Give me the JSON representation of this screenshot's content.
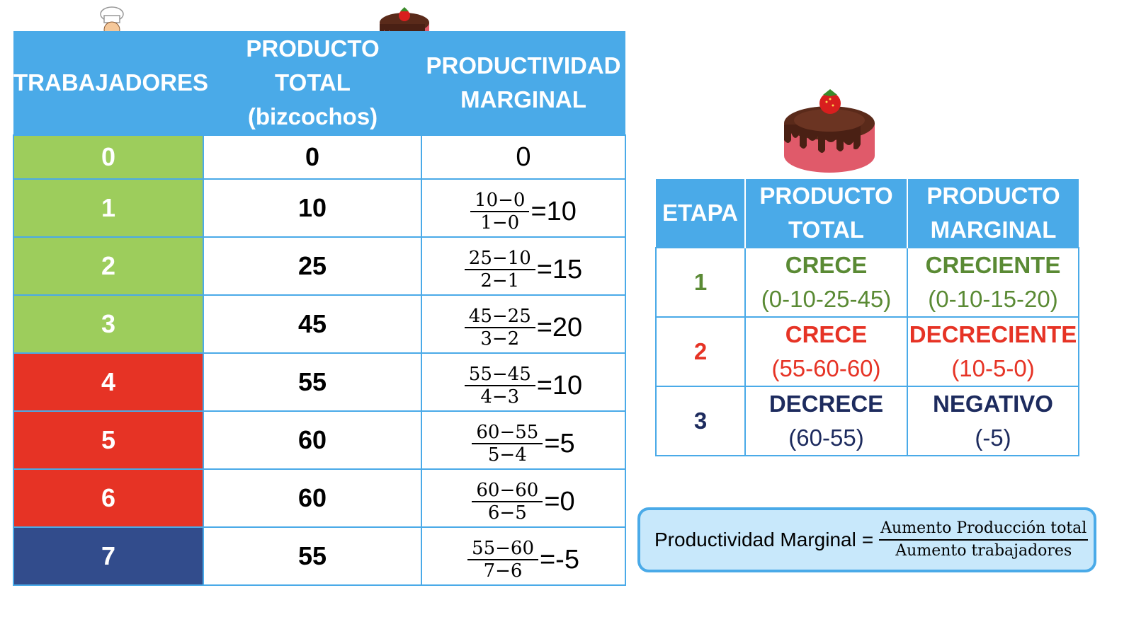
{
  "left_table": {
    "headers": {
      "trabajadores": "TRABAJADORES",
      "producto_total_line1": "PRODUCTO",
      "producto_total_line2": "TOTAL",
      "producto_total_line3": "(bizcochos)",
      "productividad_line1": "PRODUCTIVIDAD",
      "productividad_line2": "MARGINAL"
    },
    "rows": [
      {
        "workers": "0",
        "total": "0",
        "pm_plain": "0",
        "color": "#9dcd5c"
      },
      {
        "workers": "1",
        "total": "10",
        "pm_num": "10−0",
        "pm_den": "1−0",
        "pm_res": "=10",
        "color": "#9dcd5c"
      },
      {
        "workers": "2",
        "total": "25",
        "pm_num": "25−10",
        "pm_den": "2−1",
        "pm_res": "=15",
        "color": "#9dcd5c"
      },
      {
        "workers": "3",
        "total": "45",
        "pm_num": "45−25",
        "pm_den": "3−2",
        "pm_res": "=20",
        "color": "#9dcd5c"
      },
      {
        "workers": "4",
        "total": "55",
        "pm_num": "55−45",
        "pm_den": "4−3",
        "pm_res": "=10",
        "color": "#e63325"
      },
      {
        "workers": "5",
        "total": "60",
        "pm_num": "60−55",
        "pm_den": "5−4",
        "pm_res": "=5",
        "color": "#e63325"
      },
      {
        "workers": "6",
        "total": "60",
        "pm_num": "60−60",
        "pm_den": "6−5",
        "pm_res": "=0",
        "color": "#e63325"
      },
      {
        "workers": "7",
        "total": "55",
        "pm_num": "55−60",
        "pm_den": "7−6",
        "pm_res": "=-5",
        "color": "#324c8c"
      }
    ]
  },
  "right_table": {
    "headers": {
      "etapa": "ETAPA",
      "pt_line1": "PRODUCTO",
      "pt_line2": "TOTAL",
      "pm_line1": "PRODUCTO",
      "pm_line2": "MARGINAL"
    },
    "rows": [
      {
        "etapa": "1",
        "pt_kw": "CRECE",
        "pt_range": "(0-10-25-45)",
        "pm_kw": "CRECIENTE",
        "pm_range": "(0-10-15-20)",
        "color": "#5a8a34"
      },
      {
        "etapa": "2",
        "pt_kw": "CRECE",
        "pt_range": "(55-60-60)",
        "pm_kw": "DECRECIENTE",
        "pm_range": "(10-5-0)",
        "color": "#e63325"
      },
      {
        "etapa": "3",
        "pt_kw": "DECRECE",
        "pt_range": "(60-55)",
        "pm_kw": "NEGATIVO",
        "pm_range": "(-5)",
        "color": "#1d2b5e"
      }
    ]
  },
  "formula": {
    "label": "Productividad Marginal",
    "equals": "=",
    "numerator": "Aumento Producción total",
    "denominator": "Aumento trabajadores"
  },
  "icons": {
    "chef": "chef-icon",
    "cake_small": "cake-icon",
    "cake_big": "cake-icon"
  }
}
